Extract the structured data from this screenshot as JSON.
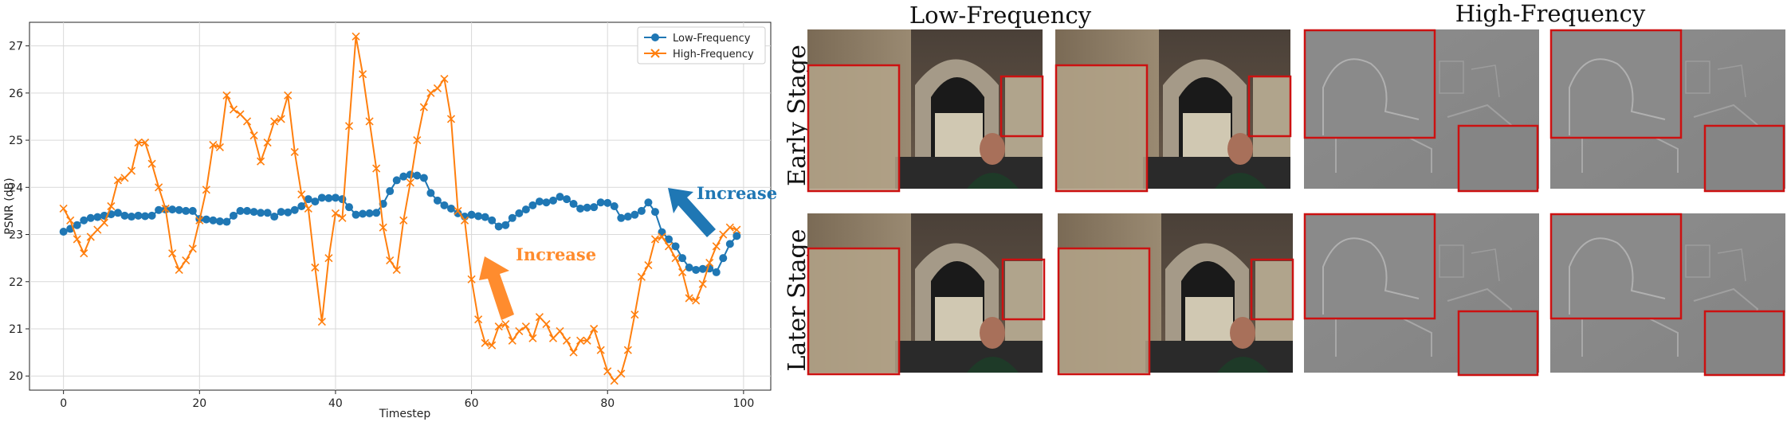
{
  "chart_data": {
    "type": "line",
    "xlabel": "Timestep",
    "ylabel": "PSNR (dB)",
    "xlim": [
      -5,
      104
    ],
    "ylim": [
      19.7,
      27.5
    ],
    "xticks": [
      0,
      20,
      40,
      60,
      80,
      100
    ],
    "yticks": [
      20,
      21,
      22,
      23,
      24,
      25,
      26,
      27
    ],
    "grid": true,
    "legend_position": "upper-right",
    "x": [
      0,
      1,
      2,
      3,
      4,
      5,
      6,
      7,
      8,
      9,
      10,
      11,
      12,
      13,
      14,
      15,
      16,
      17,
      18,
      19,
      20,
      21,
      22,
      23,
      24,
      25,
      26,
      27,
      28,
      29,
      30,
      31,
      32,
      33,
      34,
      35,
      36,
      37,
      38,
      39,
      40,
      41,
      42,
      43,
      44,
      45,
      46,
      47,
      48,
      49,
      50,
      51,
      52,
      53,
      54,
      55,
      56,
      57,
      58,
      59,
      60,
      61,
      62,
      63,
      64,
      65,
      66,
      67,
      68,
      69,
      70,
      71,
      72,
      73,
      74,
      75,
      76,
      77,
      78,
      79,
      80,
      81,
      82,
      83,
      84,
      85,
      86,
      87,
      88,
      89,
      90,
      91,
      92,
      93,
      94,
      95,
      96,
      97,
      98,
      99
    ],
    "series": [
      {
        "name": "Low-Frequency",
        "color": "#1f77b4",
        "marker": "circle",
        "values": [
          23.06,
          23.12,
          23.2,
          23.3,
          23.35,
          23.37,
          23.4,
          23.43,
          23.46,
          23.4,
          23.38,
          23.4,
          23.39,
          23.4,
          23.52,
          23.53,
          23.53,
          23.52,
          23.5,
          23.5,
          23.33,
          23.32,
          23.3,
          23.28,
          23.27,
          23.4,
          23.5,
          23.5,
          23.48,
          23.46,
          23.46,
          23.38,
          23.48,
          23.47,
          23.52,
          23.6,
          23.75,
          23.7,
          23.78,
          23.77,
          23.78,
          23.75,
          23.58,
          23.42,
          23.44,
          23.45,
          23.46,
          23.65,
          23.92,
          24.15,
          24.23,
          24.27,
          24.25,
          24.2,
          23.88,
          23.72,
          23.62,
          23.55,
          23.45,
          23.38,
          23.42,
          23.39,
          23.37,
          23.3,
          23.17,
          23.2,
          23.35,
          23.45,
          23.53,
          23.62,
          23.7,
          23.68,
          23.72,
          23.8,
          23.75,
          23.65,
          23.55,
          23.57,
          23.58,
          23.68,
          23.67,
          23.6,
          23.35,
          23.38,
          23.42,
          23.5,
          23.68,
          23.48,
          23.05,
          22.9,
          22.75,
          22.5,
          22.3,
          22.25,
          22.27,
          22.28,
          22.2,
          22.5,
          22.8,
          22.97
        ]
      },
      {
        "name": "High-Frequency",
        "color": "#ff7f0e",
        "marker": "x",
        "values": [
          23.55,
          23.3,
          22.9,
          22.6,
          22.95,
          23.1,
          23.25,
          23.6,
          24.15,
          24.2,
          24.35,
          24.95,
          24.95,
          24.5,
          24.0,
          23.55,
          22.6,
          22.25,
          22.45,
          22.7,
          23.3,
          23.95,
          24.9,
          24.85,
          25.95,
          25.65,
          25.55,
          25.4,
          25.1,
          24.55,
          24.95,
          25.4,
          25.45,
          25.95,
          24.75,
          23.85,
          23.55,
          22.3,
          21.15,
          22.5,
          23.45,
          23.35,
          25.3,
          27.2,
          26.4,
          25.4,
          24.4,
          23.15,
          22.45,
          22.25,
          23.3,
          24.1,
          25.0,
          25.7,
          26.0,
          26.1,
          26.3,
          25.45,
          23.5,
          23.3,
          22.05,
          21.2,
          20.7,
          20.65,
          21.05,
          21.1,
          20.75,
          20.95,
          21.05,
          20.8,
          21.25,
          21.1,
          20.8,
          20.95,
          20.75,
          20.5,
          20.75,
          20.75,
          21.0,
          20.55,
          20.1,
          19.9,
          20.05,
          20.55,
          21.3,
          22.1,
          22.35,
          22.9,
          22.95,
          22.75,
          22.5,
          22.2,
          21.65,
          21.6,
          21.95,
          22.4,
          22.75,
          23.0,
          23.15,
          23.1
        ]
      }
    ],
    "annotations": [
      {
        "text": "Increase",
        "color": "#ff8c2e"
      },
      {
        "text": "Increase",
        "color": "#1f77b4"
      }
    ]
  },
  "panel": {
    "header_low": "Low-Frequency",
    "header_high": "High-Frequency",
    "row_early": "Early Stage",
    "row_later": "Later Stage"
  }
}
